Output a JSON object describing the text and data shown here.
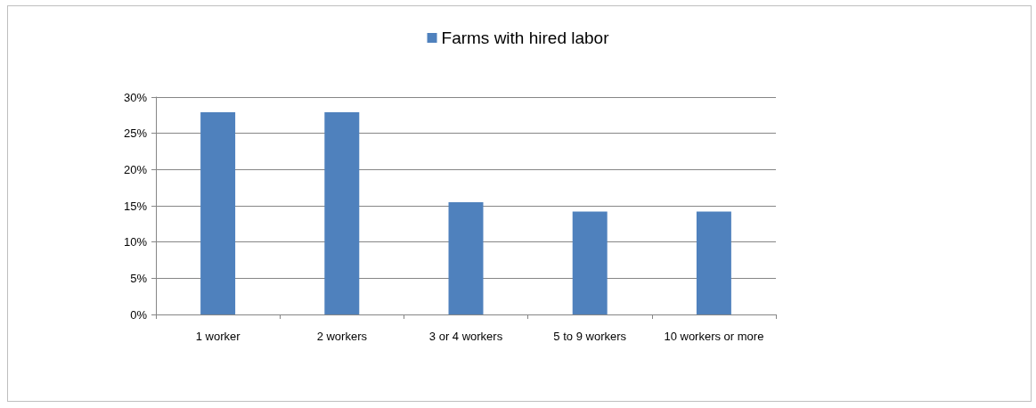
{
  "chart_data": {
    "type": "bar",
    "categories": [
      "1 worker",
      "2 workers",
      "3 or 4 workers",
      "5 to 9 workers",
      "10 workers or more"
    ],
    "series": [
      {
        "name": "Farms with hired labor",
        "color": "#4f81bd",
        "values": [
          27.9,
          27.9,
          15.5,
          14.2,
          14.2
        ]
      }
    ],
    "ylim": [
      0,
      30
    ],
    "yticks": [
      {
        "value": 0,
        "label": "0%"
      },
      {
        "value": 5,
        "label": "5%"
      },
      {
        "value": 10,
        "label": "10%"
      },
      {
        "value": 15,
        "label": "15%"
      },
      {
        "value": 20,
        "label": "20%"
      },
      {
        "value": 25,
        "label": "25%"
      },
      {
        "value": 30,
        "label": "30%"
      }
    ],
    "grid": "y",
    "legend": "top"
  }
}
